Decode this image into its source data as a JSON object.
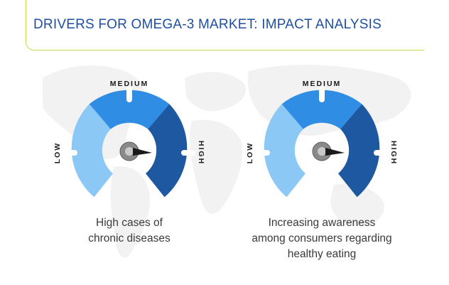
{
  "title": "DRIVERS FOR OMEGA-3 MARKET: IMPACT ANALYSIS",
  "colors": {
    "low": "#8cc8f5",
    "medium": "#2f8ee3",
    "high": "#1d58a0",
    "accent_line": "#c9d94a",
    "title": "#1f4fa0"
  },
  "scale_labels": {
    "low": "LOW",
    "medium": "MEDIUM",
    "high": "HIGH"
  },
  "drivers": [
    {
      "caption_lines": [
        "High cases of",
        "chronic diseases"
      ],
      "impact": "HIGH"
    },
    {
      "caption_lines": [
        "Increasing awareness",
        "among consumers regarding",
        "healthy eating"
      ],
      "impact": "HIGH"
    }
  ]
}
